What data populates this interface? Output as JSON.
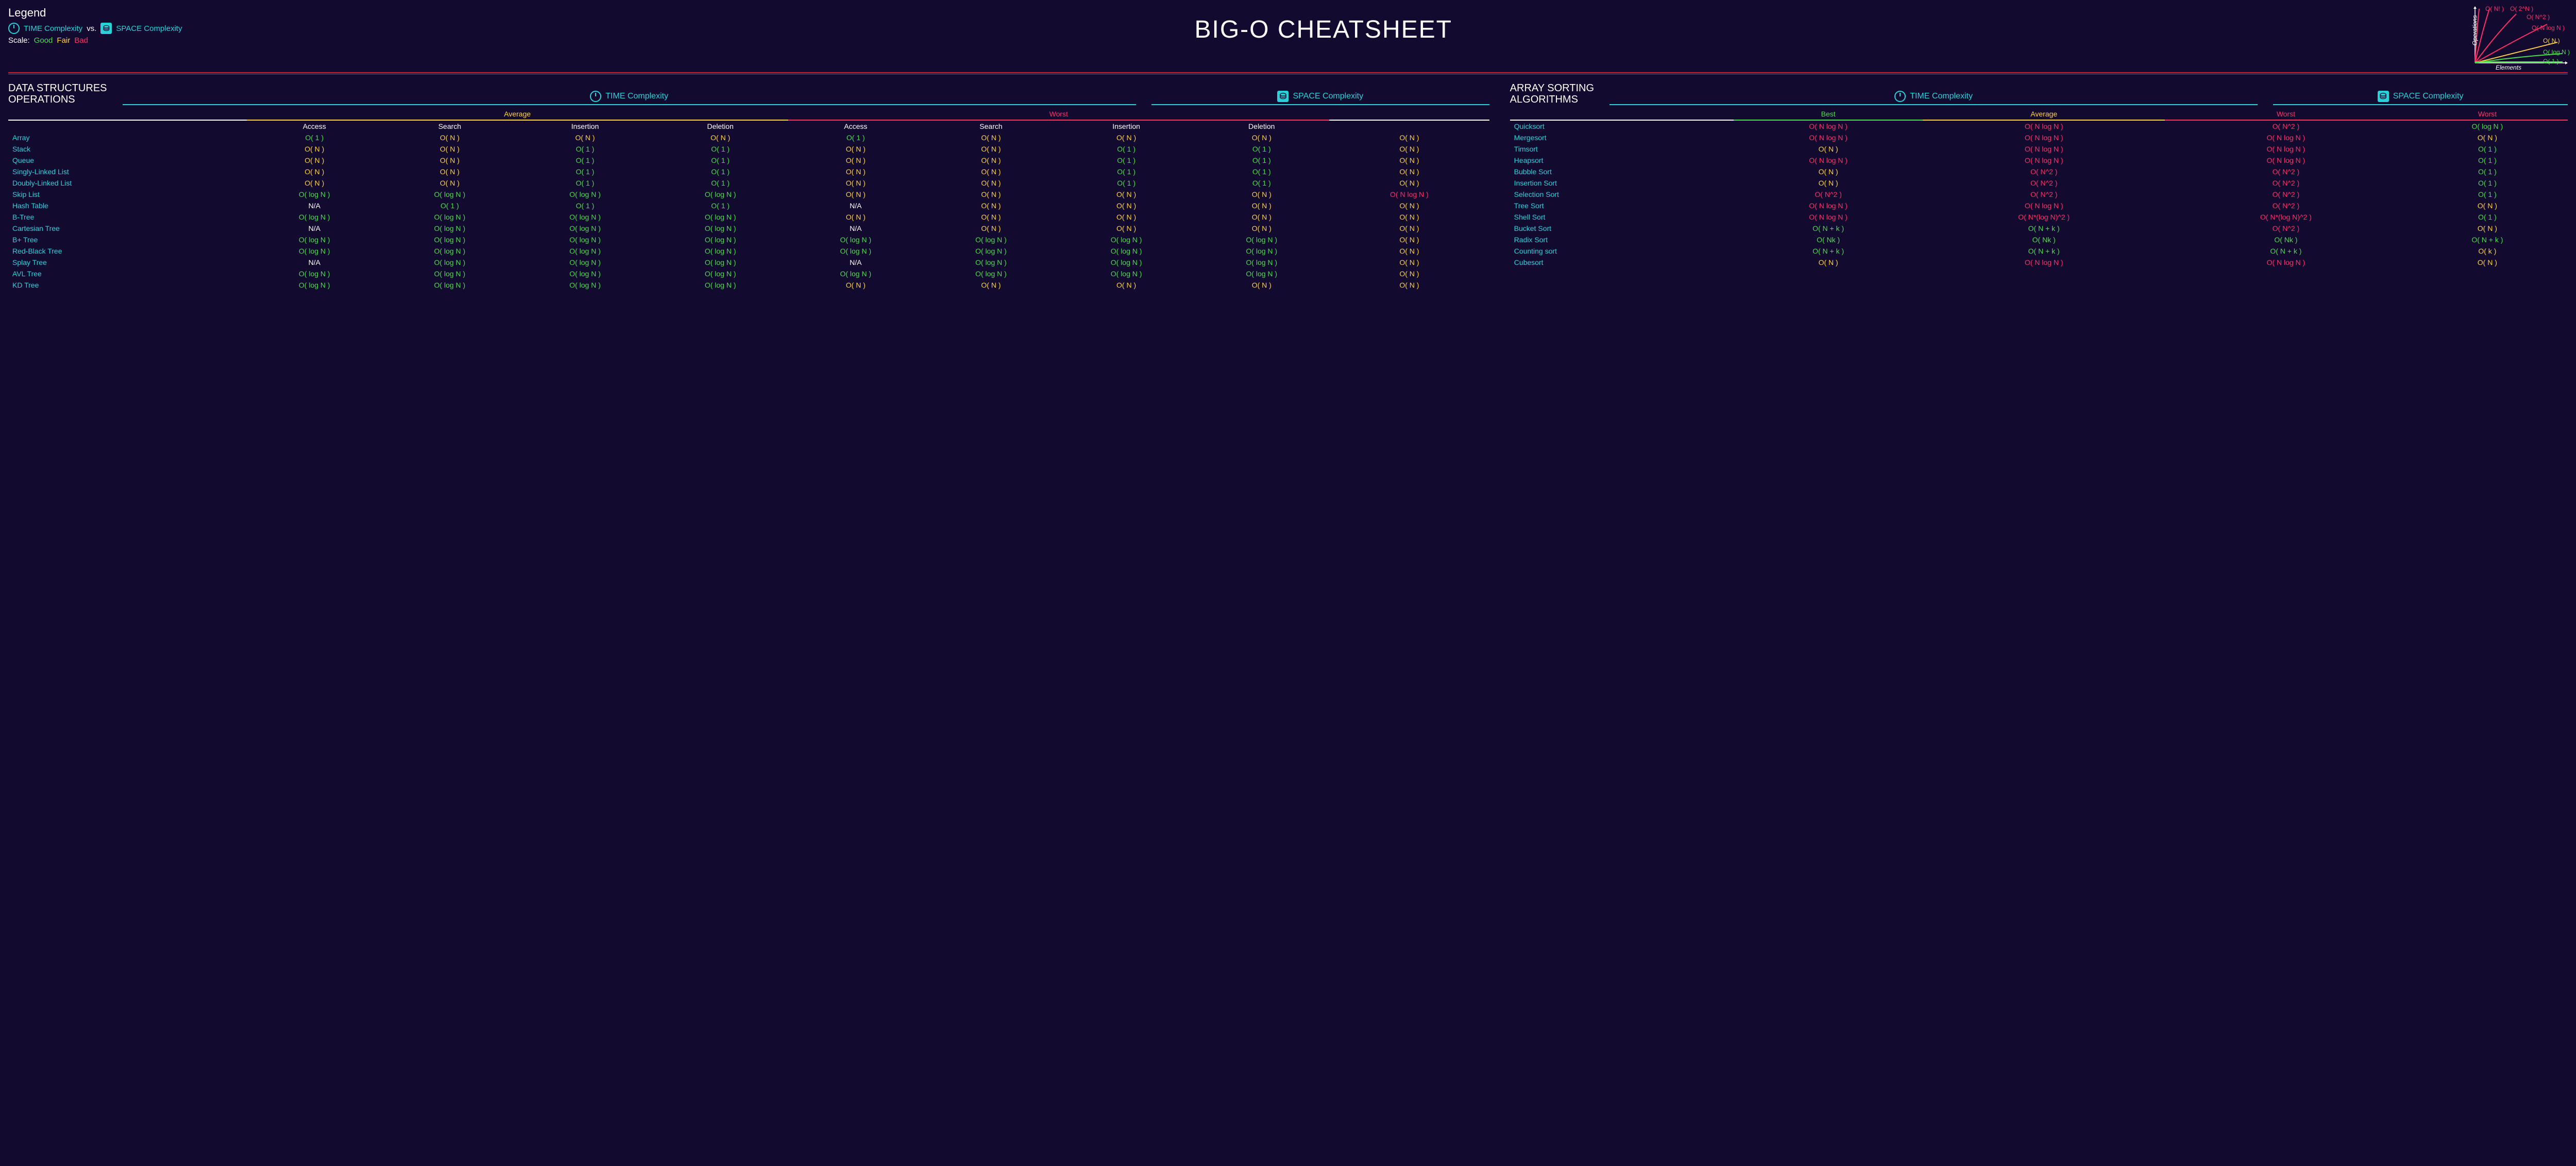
{
  "title": "BIG-O CHEATSHEET",
  "legend": {
    "heading": "Legend",
    "time": "TIME Complexity",
    "vs": "vs.",
    "space": "SPACE Complexity",
    "scaleLabel": "Scale:",
    "good": "Good",
    "fair": "Fair",
    "bad": "Bad"
  },
  "colors": {
    "bg": "#130a30",
    "cyan": "#29d2d8",
    "good": "#4ade4a",
    "fair": "#ffd23e",
    "bad": "#ff2e63",
    "white": "#ffffff"
  },
  "minigraph": {
    "xlabel": "Elements",
    "ylabel": "Operations",
    "curves": [
      {
        "label": "O( N! )",
        "color": "#ff2e63"
      },
      {
        "label": "O( 2^N )",
        "color": "#ff2e63"
      },
      {
        "label": "O( N^2 )",
        "color": "#ff2e63"
      },
      {
        "label": "O( N log N )",
        "color": "#ff2e63"
      },
      {
        "label": "O( N )",
        "color": "#ffd23e"
      },
      {
        "label": "O( log N )",
        "color": "#4ade4a"
      },
      {
        "label": "O( 1 )",
        "color": "#4ade4a"
      }
    ]
  },
  "ds": {
    "heading": "DATA STRUCTURES\nOPERATIONS",
    "timeLabel": "TIME Complexity",
    "spaceLabel": "SPACE Complexity",
    "groups": {
      "avg": "Average",
      "worst": "Worst"
    },
    "cols": [
      "Access",
      "Search",
      "Insertion",
      "Deletion",
      "Access",
      "Search",
      "Insertion",
      "Deletion"
    ],
    "rows": [
      {
        "n": "Array",
        "c": [
          [
            "O( 1 )",
            "g"
          ],
          [
            "O( N )",
            "f"
          ],
          [
            "O( N )",
            "f"
          ],
          [
            "O( N )",
            "f"
          ],
          [
            "O( 1 )",
            "g"
          ],
          [
            "O( N )",
            "f"
          ],
          [
            "O( N )",
            "f"
          ],
          [
            "O( N )",
            "f"
          ],
          [
            "O( N )",
            "f"
          ]
        ]
      },
      {
        "n": "Stack",
        "c": [
          [
            "O( N )",
            "f"
          ],
          [
            "O( N )",
            "f"
          ],
          [
            "O( 1 )",
            "g"
          ],
          [
            "O( 1 )",
            "g"
          ],
          [
            "O( N )",
            "f"
          ],
          [
            "O( N )",
            "f"
          ],
          [
            "O( 1 )",
            "g"
          ],
          [
            "O( 1 )",
            "g"
          ],
          [
            "O( N )",
            "f"
          ]
        ]
      },
      {
        "n": "Queue",
        "c": [
          [
            "O( N )",
            "f"
          ],
          [
            "O( N )",
            "f"
          ],
          [
            "O( 1 )",
            "g"
          ],
          [
            "O( 1 )",
            "g"
          ],
          [
            "O( N )",
            "f"
          ],
          [
            "O( N )",
            "f"
          ],
          [
            "O( 1 )",
            "g"
          ],
          [
            "O( 1 )",
            "g"
          ],
          [
            "O( N )",
            "f"
          ]
        ]
      },
      {
        "n": "Singly-Linked List",
        "c": [
          [
            "O( N )",
            "f"
          ],
          [
            "O( N )",
            "f"
          ],
          [
            "O( 1 )",
            "g"
          ],
          [
            "O( 1 )",
            "g"
          ],
          [
            "O( N )",
            "f"
          ],
          [
            "O( N )",
            "f"
          ],
          [
            "O( 1 )",
            "g"
          ],
          [
            "O( 1 )",
            "g"
          ],
          [
            "O( N )",
            "f"
          ]
        ]
      },
      {
        "n": "Doubly-Linked List",
        "c": [
          [
            "O( N )",
            "f"
          ],
          [
            "O( N )",
            "f"
          ],
          [
            "O( 1 )",
            "g"
          ],
          [
            "O( 1 )",
            "g"
          ],
          [
            "O( N )",
            "f"
          ],
          [
            "O( N )",
            "f"
          ],
          [
            "O( 1 )",
            "g"
          ],
          [
            "O( 1 )",
            "g"
          ],
          [
            "O( N )",
            "f"
          ]
        ]
      },
      {
        "n": "Skip List",
        "c": [
          [
            "O( log N )",
            "g"
          ],
          [
            "O( log N )",
            "g"
          ],
          [
            "O( log N )",
            "g"
          ],
          [
            "O( log N )",
            "g"
          ],
          [
            "O( N )",
            "f"
          ],
          [
            "O( N )",
            "f"
          ],
          [
            "O( N )",
            "f"
          ],
          [
            "O( N )",
            "f"
          ],
          [
            "O( N log N )",
            "b"
          ]
        ]
      },
      {
        "n": "Hash Table",
        "c": [
          [
            "N/A",
            "w"
          ],
          [
            "O( 1 )",
            "g"
          ],
          [
            "O( 1 )",
            "g"
          ],
          [
            "O( 1 )",
            "g"
          ],
          [
            "N/A",
            "w"
          ],
          [
            "O( N )",
            "f"
          ],
          [
            "O( N )",
            "f"
          ],
          [
            "O( N )",
            "f"
          ],
          [
            "O( N )",
            "f"
          ]
        ]
      },
      {
        "n": "B-Tree",
        "c": [
          [
            "O( log N )",
            "g"
          ],
          [
            "O( log N )",
            "g"
          ],
          [
            "O( log N )",
            "g"
          ],
          [
            "O( log N )",
            "g"
          ],
          [
            "O( N )",
            "f"
          ],
          [
            "O( N )",
            "f"
          ],
          [
            "O( N )",
            "f"
          ],
          [
            "O( N )",
            "f"
          ],
          [
            "O( N )",
            "f"
          ]
        ]
      },
      {
        "n": "Cartesian Tree",
        "c": [
          [
            "N/A",
            "w"
          ],
          [
            "O( log N )",
            "g"
          ],
          [
            "O( log N )",
            "g"
          ],
          [
            "O( log N )",
            "g"
          ],
          [
            "N/A",
            "w"
          ],
          [
            "O( N )",
            "f"
          ],
          [
            "O( N )",
            "f"
          ],
          [
            "O( N )",
            "f"
          ],
          [
            "O( N )",
            "f"
          ]
        ]
      },
      {
        "n": "B+ Tree",
        "c": [
          [
            "O( log N )",
            "g"
          ],
          [
            "O( log N )",
            "g"
          ],
          [
            "O( log N )",
            "g"
          ],
          [
            "O( log N )",
            "g"
          ],
          [
            "O( log N )",
            "g"
          ],
          [
            "O( log N )",
            "g"
          ],
          [
            "O( log N )",
            "g"
          ],
          [
            "O( log N )",
            "g"
          ],
          [
            "O( N )",
            "f"
          ]
        ]
      },
      {
        "n": "Red-Black Tree",
        "c": [
          [
            "O( log N )",
            "g"
          ],
          [
            "O( log N )",
            "g"
          ],
          [
            "O( log N )",
            "g"
          ],
          [
            "O( log N )",
            "g"
          ],
          [
            "O( log N )",
            "g"
          ],
          [
            "O( log N )",
            "g"
          ],
          [
            "O( log N )",
            "g"
          ],
          [
            "O( log N )",
            "g"
          ],
          [
            "O( N )",
            "f"
          ]
        ]
      },
      {
        "n": "Splay Tree",
        "c": [
          [
            "N/A",
            "w"
          ],
          [
            "O( log N )",
            "g"
          ],
          [
            "O( log N )",
            "g"
          ],
          [
            "O( log N )",
            "g"
          ],
          [
            "N/A",
            "w"
          ],
          [
            "O( log N )",
            "g"
          ],
          [
            "O( log N )",
            "g"
          ],
          [
            "O( log N )",
            "g"
          ],
          [
            "O( N )",
            "f"
          ]
        ]
      },
      {
        "n": "AVL Tree",
        "c": [
          [
            "O( log N )",
            "g"
          ],
          [
            "O( log N )",
            "g"
          ],
          [
            "O( log N )",
            "g"
          ],
          [
            "O( log N )",
            "g"
          ],
          [
            "O( log N )",
            "g"
          ],
          [
            "O( log N )",
            "g"
          ],
          [
            "O( log N )",
            "g"
          ],
          [
            "O( log N )",
            "g"
          ],
          [
            "O( N )",
            "f"
          ]
        ]
      },
      {
        "n": "KD Tree",
        "c": [
          [
            "O( log N )",
            "g"
          ],
          [
            "O( log N )",
            "g"
          ],
          [
            "O( log N )",
            "g"
          ],
          [
            "O( log N )",
            "g"
          ],
          [
            "O( N )",
            "f"
          ],
          [
            "O( N )",
            "f"
          ],
          [
            "O( N )",
            "f"
          ],
          [
            "O( N )",
            "f"
          ],
          [
            "O( N )",
            "f"
          ]
        ]
      }
    ]
  },
  "sort": {
    "heading": "ARRAY SORTING\nALGORITHMS",
    "timeLabel": "TIME Complexity",
    "spaceLabel": "SPACE Complexity",
    "cols": [
      [
        "Best",
        "g"
      ],
      [
        "Average",
        "f"
      ],
      [
        "Worst",
        "b"
      ],
      [
        "Worst",
        "b"
      ]
    ],
    "rows": [
      {
        "n": "Quicksort",
        "c": [
          [
            "O( N log N )",
            "b"
          ],
          [
            "O( N log N )",
            "b"
          ],
          [
            "O( N^2 )",
            "b"
          ],
          [
            "O( log N )",
            "g"
          ]
        ]
      },
      {
        "n": "Mergesort",
        "c": [
          [
            "O( N log N )",
            "b"
          ],
          [
            "O( N log N )",
            "b"
          ],
          [
            "O( N log N )",
            "b"
          ],
          [
            "O( N )",
            "f"
          ]
        ]
      },
      {
        "n": "Timsort",
        "c": [
          [
            "O( N )",
            "f"
          ],
          [
            "O( N log N )",
            "b"
          ],
          [
            "O( N log N )",
            "b"
          ],
          [
            "O( 1 )",
            "g"
          ]
        ]
      },
      {
        "n": "Heapsort",
        "c": [
          [
            "O( N log N )",
            "b"
          ],
          [
            "O( N log N )",
            "b"
          ],
          [
            "O( N log N )",
            "b"
          ],
          [
            "O( 1 )",
            "g"
          ]
        ]
      },
      {
        "n": "Bubble Sort",
        "c": [
          [
            "O( N )",
            "f"
          ],
          [
            "O( N^2 )",
            "b"
          ],
          [
            "O( N^2 )",
            "b"
          ],
          [
            "O( 1 )",
            "g"
          ]
        ]
      },
      {
        "n": "Insertion Sort",
        "c": [
          [
            "O( N )",
            "f"
          ],
          [
            "O( N^2 )",
            "b"
          ],
          [
            "O( N^2 )",
            "b"
          ],
          [
            "O( 1 )",
            "g"
          ]
        ]
      },
      {
        "n": "Selection Sort",
        "c": [
          [
            "O( N^2 )",
            "b"
          ],
          [
            "O( N^2 )",
            "b"
          ],
          [
            "O( N^2 )",
            "b"
          ],
          [
            "O( 1 )",
            "g"
          ]
        ]
      },
      {
        "n": "Tree Sort",
        "c": [
          [
            "O( N log N )",
            "b"
          ],
          [
            "O( N log N )",
            "b"
          ],
          [
            "O( N^2 )",
            "b"
          ],
          [
            "O( N )",
            "f"
          ]
        ]
      },
      {
        "n": "Shell Sort",
        "c": [
          [
            "O( N log N )",
            "b"
          ],
          [
            "O( N*(log N)^2 )",
            "b"
          ],
          [
            "O( N*(log N)^2 )",
            "b"
          ],
          [
            "O( 1 )",
            "g"
          ]
        ]
      },
      {
        "n": "Bucket Sort",
        "c": [
          [
            "O( N + k )",
            "g"
          ],
          [
            "O( N + k )",
            "g"
          ],
          [
            "O( N^2 )",
            "b"
          ],
          [
            "O( N )",
            "f"
          ]
        ]
      },
      {
        "n": "Radix Sort",
        "c": [
          [
            "O( Nk )",
            "g"
          ],
          [
            "O( Nk )",
            "g"
          ],
          [
            "O( Nk )",
            "g"
          ],
          [
            "O( N + k )",
            "g"
          ]
        ]
      },
      {
        "n": "Counting sort",
        "c": [
          [
            "O( N + k )",
            "g"
          ],
          [
            "O( N + k )",
            "g"
          ],
          [
            "O( N + k )",
            "g"
          ],
          [
            "O( k )",
            "f"
          ]
        ]
      },
      {
        "n": "Cubesort",
        "c": [
          [
            "O( N )",
            "f"
          ],
          [
            "O( N log N )",
            "b"
          ],
          [
            "O( N log N )",
            "b"
          ],
          [
            "O( N )",
            "f"
          ]
        ]
      }
    ]
  }
}
